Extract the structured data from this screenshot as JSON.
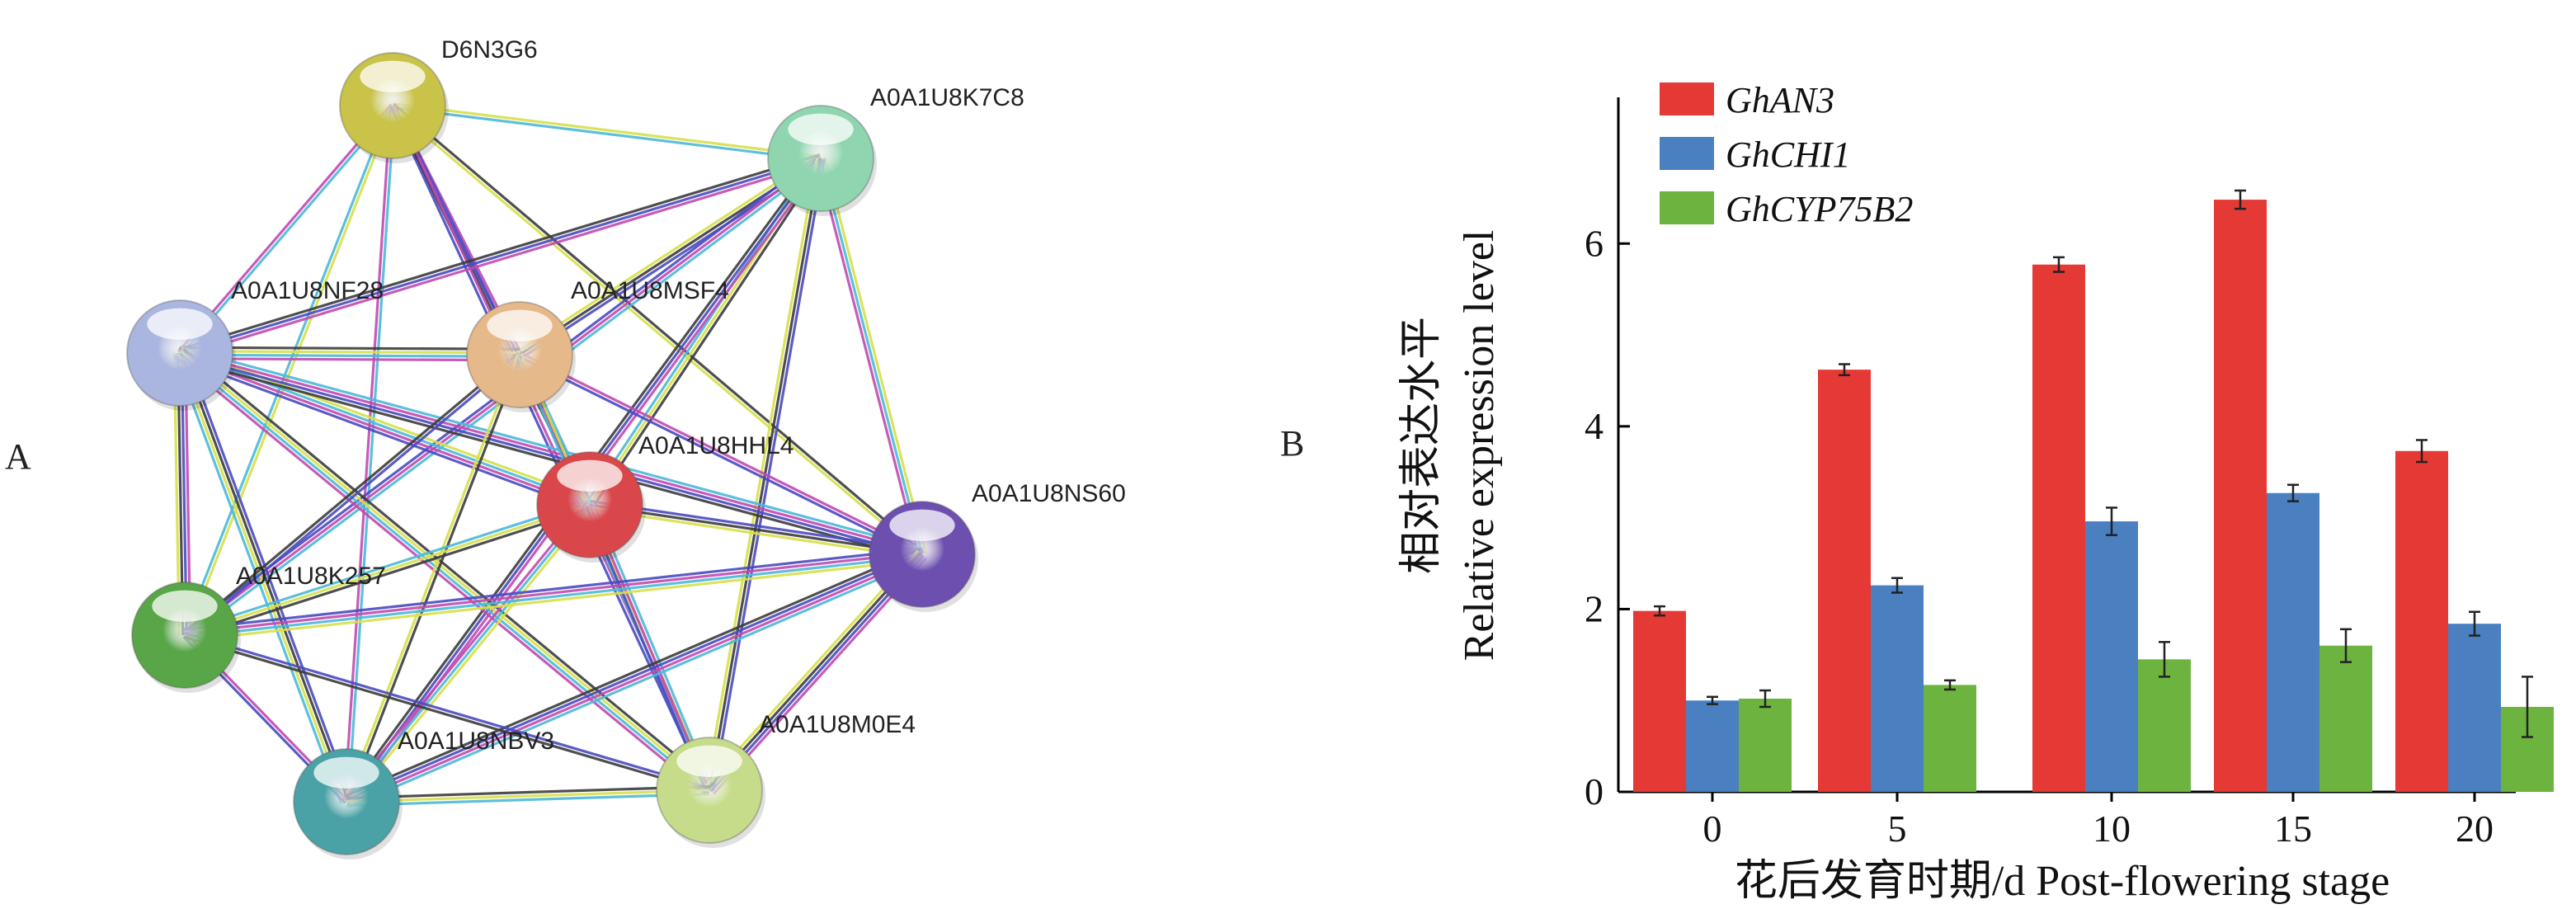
{
  "panels": {
    "a_label": "A",
    "b_label": "B"
  },
  "network": {
    "nodes": [
      {
        "id": "D6N3G6",
        "label": "D6N3G6",
        "color": "#c9c34a"
      },
      {
        "id": "A0A1U8K7C8",
        "label": "A0A1U8K7C8",
        "color": "#8fd6b0"
      },
      {
        "id": "A0A1U8NF28",
        "label": "A0A1U8NF28",
        "color": "#aab6e0"
      },
      {
        "id": "A0A1U8MSF4",
        "label": "A0A1U8MSF4",
        "color": "#e6b98a"
      },
      {
        "id": "A0A1U8HHL4",
        "label": "A0A1U8HHL4",
        "color": "#d9474a"
      },
      {
        "id": "A0A1U8NS60",
        "label": "A0A1U8NS60",
        "color": "#6d4fb0"
      },
      {
        "id": "A0A1U8K257",
        "label": "A0A1U8K257",
        "color": "#58a648"
      },
      {
        "id": "A0A1U8NBV3",
        "label": "A0A1U8NBV3",
        "color": "#4aa2a6"
      },
      {
        "id": "A0A1U8M0E4",
        "label": "A0A1U8M0E4",
        "color": "#c7dc8a"
      }
    ],
    "edge_colors": [
      "#3c3c3c",
      "#d6e04a",
      "#4db8d8",
      "#c04ab0",
      "#4a4ac0"
    ]
  },
  "chart_data": {
    "type": "bar",
    "categories": [
      "0",
      "5",
      "10",
      "15",
      "20"
    ],
    "series": [
      {
        "name": "GhAN3",
        "color": "#e53935",
        "values": [
          1.98,
          4.62,
          5.77,
          6.48,
          3.73
        ],
        "errors": [
          0.05,
          0.06,
          0.08,
          0.1,
          0.12
        ]
      },
      {
        "name": "GhCHI1",
        "color": "#4a7fc0",
        "values": [
          1.0,
          2.26,
          2.96,
          3.27,
          1.84
        ],
        "errors": [
          0.04,
          0.08,
          0.15,
          0.09,
          0.13
        ]
      },
      {
        "name": "GhCYP75B2",
        "color": "#6db33f",
        "values": [
          1.02,
          1.17,
          1.45,
          1.6,
          0.93
        ],
        "errors": [
          0.09,
          0.05,
          0.19,
          0.18,
          0.33
        ]
      }
    ],
    "ylim": [
      0,
      7.6
    ],
    "yticks": [
      0,
      2,
      4,
      6
    ],
    "ylabel_cn": "相对表达水平",
    "ylabel_en": "Relative expression level",
    "xlabel": "花后发育时期/d  Post-flowering stage",
    "legend_position": "top-left",
    "grid": false
  }
}
